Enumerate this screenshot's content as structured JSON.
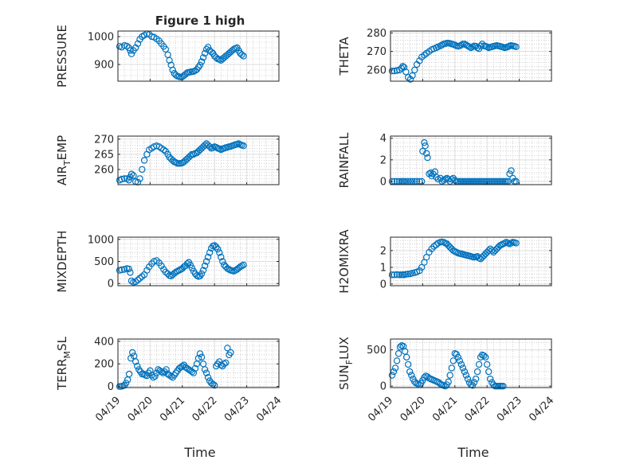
{
  "figure_title": "Figure 1 high",
  "xlabel": "Time",
  "marker_color": "#0072BD",
  "x_tick_labels": [
    "04/19",
    "04/20",
    "04/21",
    "04/22",
    "04/23",
    "04/24"
  ],
  "chart_data": [
    {
      "type": "scatter",
      "ylabel": "PRESSURE",
      "ylabel_sub": "",
      "ylabel_suffix": "",
      "title": "Figure 1 high",
      "xlim": [
        0,
        5
      ],
      "ylim": [
        840,
        1020
      ],
      "yticks": [
        900,
        1000
      ],
      "ytick_labels": [
        "900",
        "1000"
      ],
      "x": [
        0.05,
        0.12,
        0.2,
        0.28,
        0.34,
        0.38,
        0.42,
        0.48,
        0.55,
        0.62,
        0.68,
        0.75,
        0.82,
        0.9,
        0.97,
        1.05,
        1.12,
        1.2,
        1.28,
        1.35,
        1.42,
        1.48,
        1.55,
        1.6,
        1.65,
        1.7,
        1.75,
        1.8,
        1.85,
        1.9,
        1.95,
        2.0,
        2.05,
        2.1,
        2.15,
        2.2,
        2.25,
        2.3,
        2.35,
        2.4,
        2.45,
        2.5,
        2.55,
        2.6,
        2.65,
        2.7,
        2.75,
        2.8,
        2.85,
        2.9,
        2.95,
        3.0,
        3.05,
        3.1,
        3.15,
        3.2,
        3.25,
        3.3,
        3.35,
        3.4,
        3.45,
        3.5,
        3.55,
        3.6,
        3.65,
        3.7,
        3.75,
        3.8,
        3.85,
        3.9
      ],
      "y": [
        965,
        962,
        968,
        966,
        960,
        950,
        938,
        950,
        960,
        975,
        990,
        1000,
        1005,
        1010,
        1008,
        1000,
        998,
        992,
        985,
        975,
        965,
        955,
        935,
        915,
        898,
        880,
        868,
        862,
        858,
        856,
        855,
        856,
        860,
        865,
        870,
        872,
        873,
        874,
        875,
        878,
        882,
        890,
        898,
        910,
        925,
        940,
        955,
        962,
        950,
        945,
        940,
        930,
        925,
        920,
        918,
        915,
        920,
        925,
        930,
        935,
        940,
        945,
        950,
        955,
        958,
        960,
        950,
        940,
        935,
        930
      ]
    },
    {
      "type": "scatter",
      "ylabel": "THETA",
      "ylabel_sub": "",
      "ylabel_suffix": "",
      "title": "",
      "xlim": [
        0,
        5
      ],
      "ylim": [
        254,
        281
      ],
      "yticks": [
        260,
        270,
        280
      ],
      "ytick_labels": [
        "260",
        "270",
        "280"
      ],
      "x": [
        0.05,
        0.12,
        0.2,
        0.28,
        0.34,
        0.38,
        0.42,
        0.48,
        0.55,
        0.62,
        0.68,
        0.75,
        0.82,
        0.9,
        0.97,
        1.05,
        1.12,
        1.2,
        1.28,
        1.35,
        1.42,
        1.48,
        1.55,
        1.6,
        1.65,
        1.7,
        1.75,
        1.8,
        1.85,
        1.9,
        1.95,
        2.0,
        2.05,
        2.1,
        2.15,
        2.2,
        2.25,
        2.3,
        2.35,
        2.4,
        2.45,
        2.5,
        2.55,
        2.6,
        2.65,
        2.7,
        2.75,
        2.8,
        2.85,
        2.9,
        2.95,
        3.0,
        3.05,
        3.1,
        3.15,
        3.2,
        3.25,
        3.3,
        3.35,
        3.4,
        3.45,
        3.5,
        3.55,
        3.6,
        3.65,
        3.7,
        3.75,
        3.8,
        3.85,
        3.9
      ],
      "y": [
        259.5,
        259.5,
        259.8,
        260,
        261,
        262,
        261.5,
        259,
        256,
        255,
        257,
        260,
        263,
        265,
        267,
        268,
        269,
        270,
        271,
        271.5,
        272,
        272.5,
        273,
        273.5,
        274,
        274.2,
        274.5,
        274.5,
        274.3,
        274,
        273.8,
        273.5,
        273,
        272.8,
        273,
        273.5,
        274,
        274,
        273.5,
        273,
        272.5,
        272,
        272.5,
        273,
        272.8,
        272,
        271.5,
        273,
        274,
        273,
        272.8,
        272.5,
        272,
        272.3,
        272.5,
        272.8,
        273,
        273.2,
        273,
        272.8,
        272.5,
        272.3,
        272,
        272.2,
        272.5,
        273,
        273.2,
        273,
        272.8,
        272.5
      ]
    },
    {
      "type": "scatter",
      "ylabel": "AIR",
      "ylabel_sub": "T",
      "ylabel_suffix": "EMP",
      "title": "",
      "xlim": [
        0,
        5
      ],
      "ylim": [
        255,
        271
      ],
      "yticks": [
        260,
        265,
        270
      ],
      "ytick_labels": [
        "260",
        "265",
        "270"
      ],
      "x": [
        0.05,
        0.12,
        0.2,
        0.28,
        0.34,
        0.38,
        0.42,
        0.48,
        0.55,
        0.62,
        0.68,
        0.75,
        0.82,
        0.9,
        0.97,
        1.05,
        1.12,
        1.2,
        1.28,
        1.35,
        1.42,
        1.48,
        1.55,
        1.6,
        1.65,
        1.7,
        1.75,
        1.8,
        1.85,
        1.9,
        1.95,
        2.0,
        2.05,
        2.1,
        2.15,
        2.2,
        2.25,
        2.3,
        2.35,
        2.4,
        2.45,
        2.5,
        2.55,
        2.6,
        2.65,
        2.7,
        2.75,
        2.8,
        2.85,
        2.9,
        2.95,
        3.0,
        3.05,
        3.1,
        3.15,
        3.2,
        3.25,
        3.3,
        3.35,
        3.4,
        3.45,
        3.5,
        3.55,
        3.6,
        3.65,
        3.7,
        3.75,
        3.8,
        3.85,
        3.9
      ],
      "y": [
        256.5,
        256.8,
        257,
        257,
        256.5,
        257.5,
        258.5,
        258,
        256,
        255.8,
        257,
        260,
        263,
        265,
        266.5,
        267,
        267.5,
        267.8,
        267.5,
        267,
        266.5,
        266,
        265,
        264,
        263.5,
        263,
        262.5,
        262.3,
        262,
        262,
        262,
        262.2,
        262.5,
        263,
        263.5,
        264,
        264.5,
        265,
        265,
        265.3,
        265.5,
        266,
        266.5,
        267,
        267.5,
        268,
        268.5,
        268,
        267.5,
        267,
        267.2,
        267.5,
        267.3,
        267,
        266.8,
        266.5,
        266.8,
        267,
        267.2,
        267.3,
        267.5,
        267.6,
        267.8,
        268,
        268.2,
        268.3,
        268.5,
        268.2,
        268,
        267.8
      ]
    },
    {
      "type": "scatter",
      "ylabel": "RAINFALL",
      "ylabel_sub": "",
      "ylabel_suffix": "",
      "title": "",
      "xlim": [
        0,
        5
      ],
      "ylim": [
        -0.3,
        4.2
      ],
      "yticks": [
        0,
        2,
        4
      ],
      "ytick_labels": [
        "0",
        "2",
        "4"
      ],
      "x": [
        0.05,
        0.12,
        0.2,
        0.28,
        0.34,
        0.38,
        0.42,
        0.48,
        0.55,
        0.62,
        0.68,
        0.75,
        0.82,
        0.9,
        0.97,
        1.0,
        1.05,
        1.08,
        1.12,
        1.15,
        1.2,
        1.25,
        1.28,
        1.32,
        1.38,
        1.42,
        1.48,
        1.55,
        1.6,
        1.65,
        1.7,
        1.75,
        1.8,
        1.85,
        1.9,
        1.95,
        2.0,
        2.05,
        2.1,
        2.15,
        2.2,
        2.25,
        2.3,
        2.35,
        2.4,
        2.45,
        2.5,
        2.55,
        2.6,
        2.65,
        2.7,
        2.75,
        2.8,
        2.85,
        2.9,
        2.95,
        3.0,
        3.05,
        3.1,
        3.15,
        3.2,
        3.25,
        3.3,
        3.35,
        3.4,
        3.45,
        3.5,
        3.55,
        3.6,
        3.65,
        3.7,
        3.75,
        3.8,
        3.85,
        3.9
      ],
      "y": [
        0,
        0,
        0,
        0,
        0,
        0,
        0,
        0,
        0,
        0,
        0,
        0,
        0,
        0,
        0,
        2.8,
        3.6,
        3.3,
        2.6,
        2.2,
        0.7,
        0.8,
        0.5,
        0.7,
        0.9,
        0.4,
        0.2,
        0.3,
        0,
        0.1,
        0.2,
        0.3,
        0.2,
        0,
        0.2,
        0.3,
        0.1,
        0,
        0,
        0,
        0,
        0,
        0,
        0,
        0,
        0,
        0,
        0,
        0,
        0,
        0,
        0,
        0,
        0,
        0,
        0,
        0,
        0,
        0,
        0,
        0,
        0,
        0,
        0,
        0,
        0,
        0,
        0,
        0,
        0,
        0.7,
        1.0,
        0.3,
        0,
        0
      ]
    },
    {
      "type": "scatter",
      "ylabel": "MIXDEPTH",
      "ylabel_sub": "",
      "ylabel_suffix": "",
      "title": "",
      "xlim": [
        0,
        5
      ],
      "ylim": [
        -50,
        1050
      ],
      "yticks": [
        0,
        500,
        1000
      ],
      "ytick_labels": [
        "0",
        "500",
        "1000"
      ],
      "x": [
        0.05,
        0.12,
        0.2,
        0.28,
        0.34,
        0.38,
        0.42,
        0.48,
        0.55,
        0.62,
        0.68,
        0.75,
        0.82,
        0.9,
        0.97,
        1.05,
        1.12,
        1.2,
        1.28,
        1.35,
        1.42,
        1.48,
        1.55,
        1.6,
        1.65,
        1.7,
        1.75,
        1.8,
        1.85,
        1.9,
        1.95,
        2.0,
        2.05,
        2.1,
        2.15,
        2.2,
        2.25,
        2.3,
        2.35,
        2.4,
        2.45,
        2.5,
        2.55,
        2.6,
        2.65,
        2.7,
        2.75,
        2.8,
        2.85,
        2.9,
        2.95,
        3.0,
        3.05,
        3.1,
        3.15,
        3.2,
        3.25,
        3.3,
        3.35,
        3.4,
        3.45,
        3.5,
        3.55,
        3.6,
        3.65,
        3.7,
        3.75,
        3.8,
        3.85,
        3.9
      ],
      "y": [
        300,
        310,
        320,
        340,
        330,
        250,
        60,
        30,
        40,
        80,
        120,
        160,
        200,
        300,
        380,
        450,
        500,
        520,
        470,
        400,
        320,
        260,
        220,
        180,
        170,
        200,
        230,
        260,
        280,
        300,
        320,
        340,
        380,
        400,
        450,
        480,
        420,
        350,
        280,
        220,
        180,
        160,
        170,
        220,
        300,
        400,
        500,
        600,
        700,
        800,
        850,
        860,
        830,
        780,
        700,
        600,
        500,
        420,
        380,
        340,
        320,
        300,
        290,
        280,
        300,
        320,
        350,
        380,
        400,
        420
      ]
    },
    {
      "type": "scatter",
      "ylabel": "H2OMIXRA",
      "ylabel_sub": "",
      "ylabel_suffix": "",
      "title": "",
      "xlim": [
        0,
        5
      ],
      "ylim": [
        -0.1,
        2.8
      ],
      "yticks": [
        0,
        1,
        2
      ],
      "ytick_labels": [
        "0",
        "1",
        "2"
      ],
      "x": [
        0.05,
        0.12,
        0.2,
        0.28,
        0.34,
        0.38,
        0.42,
        0.48,
        0.55,
        0.62,
        0.68,
        0.75,
        0.82,
        0.9,
        0.97,
        1.05,
        1.12,
        1.2,
        1.28,
        1.35,
        1.42,
        1.48,
        1.55,
        1.6,
        1.65,
        1.7,
        1.75,
        1.8,
        1.85,
        1.9,
        1.95,
        2.0,
        2.05,
        2.1,
        2.15,
        2.2,
        2.25,
        2.3,
        2.35,
        2.4,
        2.45,
        2.5,
        2.55,
        2.6,
        2.65,
        2.7,
        2.75,
        2.8,
        2.85,
        2.9,
        2.95,
        3.0,
        3.05,
        3.1,
        3.15,
        3.2,
        3.25,
        3.3,
        3.35,
        3.4,
        3.45,
        3.5,
        3.55,
        3.6,
        3.65,
        3.7,
        3.75,
        3.8,
        3.85,
        3.9
      ],
      "y": [
        0.55,
        0.55,
        0.56,
        0.55,
        0.55,
        0.56,
        0.55,
        0.58,
        0.6,
        0.62,
        0.65,
        0.68,
        0.72,
        0.8,
        1.0,
        1.3,
        1.6,
        1.9,
        2.1,
        2.25,
        2.35,
        2.45,
        2.5,
        2.52,
        2.5,
        2.45,
        2.4,
        2.3,
        2.2,
        2.1,
        2.0,
        1.95,
        1.9,
        1.85,
        1.82,
        1.8,
        1.78,
        1.75,
        1.72,
        1.7,
        1.68,
        1.65,
        1.62,
        1.6,
        1.62,
        1.65,
        1.55,
        1.5,
        1.6,
        1.7,
        1.8,
        1.9,
        2.0,
        2.1,
        2.0,
        1.9,
        2.0,
        2.1,
        2.2,
        2.3,
        2.35,
        2.4,
        2.45,
        2.5,
        2.45,
        2.4,
        2.45,
        2.5,
        2.48,
        2.45
      ]
    },
    {
      "type": "scatter",
      "ylabel": "TERR",
      "ylabel_sub": "M",
      "ylabel_suffix": "SL",
      "title": "",
      "xlim": [
        0,
        5
      ],
      "ylim": [
        -10,
        420
      ],
      "yticks": [
        0,
        200,
        400
      ],
      "ytick_labels": [
        "0",
        "200",
        "400"
      ],
      "x": [
        0.05,
        0.1,
        0.15,
        0.2,
        0.25,
        0.3,
        0.35,
        0.4,
        0.45,
        0.5,
        0.55,
        0.6,
        0.65,
        0.7,
        0.75,
        0.8,
        0.85,
        0.9,
        0.95,
        1.0,
        1.05,
        1.1,
        1.15,
        1.2,
        1.25,
        1.3,
        1.35,
        1.4,
        1.45,
        1.5,
        1.55,
        1.6,
        1.65,
        1.7,
        1.75,
        1.8,
        1.85,
        1.9,
        1.95,
        2.0,
        2.05,
        2.1,
        2.15,
        2.2,
        2.25,
        2.3,
        2.35,
        2.4,
        2.45,
        2.5,
        2.55,
        2.6,
        2.65,
        2.7,
        2.75,
        2.8,
        2.85,
        2.9,
        2.95,
        3.0,
        3.05,
        3.1,
        3.15,
        3.2,
        3.25,
        3.3,
        3.35,
        3.4,
        3.45,
        3.5
      ],
      "y": [
        0,
        0,
        5,
        10,
        30,
        60,
        110,
        250,
        300,
        270,
        220,
        180,
        150,
        130,
        110,
        110,
        100,
        95,
        120,
        140,
        100,
        80,
        90,
        120,
        150,
        140,
        130,
        120,
        130,
        150,
        110,
        100,
        90,
        80,
        100,
        120,
        140,
        160,
        170,
        180,
        190,
        170,
        160,
        150,
        140,
        130,
        120,
        160,
        200,
        250,
        290,
        260,
        200,
        150,
        120,
        80,
        50,
        30,
        20,
        10,
        180,
        200,
        220,
        190,
        180,
        200,
        210,
        340,
        280,
        300
      ]
    },
    {
      "type": "scatter",
      "ylabel": "SUN",
      "ylabel_sub": "F",
      "ylabel_suffix": "LUX",
      "title": "",
      "xlim": [
        0,
        5
      ],
      "ylim": [
        -20,
        650
      ],
      "yticks": [
        0,
        500
      ],
      "ytick_labels": [
        "0",
        "500"
      ],
      "x": [
        0.05,
        0.1,
        0.15,
        0.2,
        0.25,
        0.3,
        0.35,
        0.4,
        0.45,
        0.5,
        0.55,
        0.6,
        0.65,
        0.7,
        0.75,
        0.8,
        0.85,
        0.9,
        0.95,
        1.0,
        1.05,
        1.1,
        1.15,
        1.2,
        1.25,
        1.3,
        1.35,
        1.4,
        1.45,
        1.5,
        1.55,
        1.6,
        1.65,
        1.7,
        1.75,
        1.8,
        1.85,
        1.9,
        1.95,
        2.0,
        2.05,
        2.1,
        2.15,
        2.2,
        2.25,
        2.3,
        2.35,
        2.4,
        2.45,
        2.5,
        2.55,
        2.6,
        2.65,
        2.7,
        2.75,
        2.8,
        2.85,
        2.9,
        2.95,
        3.0,
        3.05,
        3.1,
        3.15,
        3.2,
        3.25,
        3.3,
        3.35,
        3.4,
        3.45,
        3.5
      ],
      "y": [
        150,
        200,
        250,
        350,
        450,
        540,
        560,
        550,
        480,
        400,
        300,
        200,
        150,
        100,
        60,
        40,
        30,
        20,
        40,
        80,
        120,
        140,
        130,
        110,
        100,
        90,
        80,
        70,
        60,
        50,
        30,
        20,
        10,
        0,
        20,
        60,
        150,
        250,
        350,
        450,
        440,
        400,
        350,
        300,
        250,
        200,
        150,
        100,
        50,
        20,
        10,
        50,
        100,
        200,
        300,
        400,
        430,
        420,
        400,
        300,
        200,
        100,
        50,
        20,
        0,
        0,
        0,
        0,
        0,
        0
      ]
    }
  ]
}
